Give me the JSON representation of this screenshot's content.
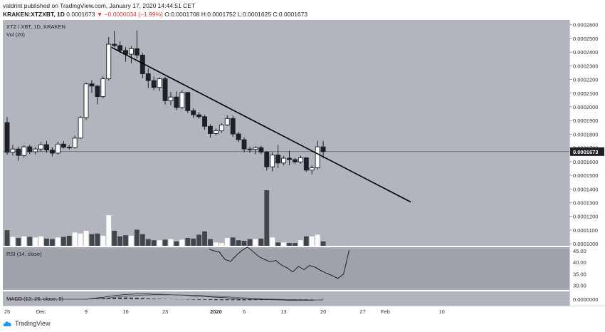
{
  "header": {
    "line1": "valdrint published on TradingView.com, January 17, 2020 14:44:51 CET",
    "symbol": "KRAKEN:XTZXBT, 1D",
    "last": "0.0001673",
    "change": "−0.0000034 (−1.99%)",
    "ohlc": "O:0.0001708 H:0.0001752 L:0.0001625 C:0.0001673"
  },
  "footer": {
    "brand": "TradingView"
  },
  "colors": {
    "panel_bg": "#b2b5be",
    "rsi_bg": "#a6a9b1",
    "up": "#ffffff",
    "down": "#1e2026"
  },
  "chart_data": {
    "type": "candlestick",
    "title": "XTZ / XBT, 1D, KRAKEN",
    "volume_label": "Vol (20)",
    "rsi_label": "RSI (14, close)",
    "macd_label": "MACD (12, 26, close, 9)",
    "last_price_label": "0.0001673",
    "price_axis": {
      "ylim": [
        9.85e-05,
        0.0002635
      ],
      "ticks": [
        0.0001,
        0.00011,
        0.00012,
        0.00013,
        0.00014,
        0.00015,
        0.00016,
        0.00017,
        0.00018,
        0.00019,
        0.0002,
        0.00021,
        0.00022,
        0.00023,
        0.00024,
        0.00025,
        0.00026
      ],
      "tick_labels": [
        "0.0001000",
        "0.0001100",
        "0.0001200",
        "0.0001300",
        "0.0001400",
        "0.0001500",
        "0.0001600",
        "0.0001700",
        "0.0001800",
        "0.0001900",
        "0.0002000",
        "0.0002100",
        "0.0002200",
        "0.0002300",
        "0.0002400",
        "0.0002500",
        "0.0002600"
      ]
    },
    "rsi_axis": {
      "ylim": [
        28,
        46.5
      ],
      "ticks": [
        30,
        35,
        40,
        45
      ],
      "tick_labels": [
        "30.00",
        "35.00",
        "40.00",
        "45.00"
      ]
    },
    "macd_axis": {
      "tick_labels": [
        "0.0000000"
      ]
    },
    "x_axis": {
      "labels": [
        {
          "day": 0,
          "label": "25"
        },
        {
          "day": 6,
          "label": "Dec"
        },
        {
          "day": 14,
          "label": "9"
        },
        {
          "day": 21,
          "label": "16"
        },
        {
          "day": 28,
          "label": "23"
        },
        {
          "day": 37,
          "label": "2020"
        },
        {
          "day": 42,
          "label": "6"
        },
        {
          "day": 49,
          "label": "13"
        },
        {
          "day": 56,
          "label": "20"
        },
        {
          "day": 63,
          "label": "27"
        },
        {
          "day": 67,
          "label": "Feb"
        },
        {
          "day": 77,
          "label": "10"
        }
      ]
    },
    "candles": [
      {
        "o": 0.0001885,
        "h": 0.0001925,
        "l": 0.000165,
        "c": 0.0001668
      },
      {
        "o": 0.0001668,
        "h": 0.0001722,
        "l": 0.0001645,
        "c": 0.0001692
      },
      {
        "o": 0.0001692,
        "h": 0.000171,
        "l": 0.0001605,
        "c": 0.0001645
      },
      {
        "o": 0.0001645,
        "h": 0.000172,
        "l": 0.000163,
        "c": 0.0001708
      },
      {
        "o": 0.0001708,
        "h": 0.0001722,
        "l": 0.0001655,
        "c": 0.0001672
      },
      {
        "o": 0.0001672,
        "h": 0.0001705,
        "l": 0.0001652,
        "c": 0.0001692
      },
      {
        "o": 0.0001692,
        "h": 0.0001742,
        "l": 0.0001672,
        "c": 0.0001724
      },
      {
        "o": 0.0001724,
        "h": 0.0001752,
        "l": 0.0001665,
        "c": 0.0001685
      },
      {
        "o": 0.0001685,
        "h": 0.0001705,
        "l": 0.0001638,
        "c": 0.0001662
      },
      {
        "o": 0.0001662,
        "h": 0.0001745,
        "l": 0.0001652,
        "c": 0.0001728
      },
      {
        "o": 0.0001728,
        "h": 0.000175,
        "l": 0.0001695,
        "c": 0.0001705
      },
      {
        "o": 0.0001705,
        "h": 0.0001722,
        "l": 0.0001688,
        "c": 0.0001702
      },
      {
        "o": 0.0001702,
        "h": 0.000179,
        "l": 0.0001695,
        "c": 0.0001772
      },
      {
        "o": 0.0001772,
        "h": 0.0001932,
        "l": 0.0001765,
        "c": 0.0001922
      },
      {
        "o": 0.0001922,
        "h": 0.0002178,
        "l": 0.0001905,
        "c": 0.0002168
      },
      {
        "o": 0.0002168,
        "h": 0.0002195,
        "l": 0.0002102,
        "c": 0.0002152
      },
      {
        "o": 0.0002152,
        "h": 0.0002158,
        "l": 0.0002018,
        "c": 0.0002075
      },
      {
        "o": 0.0002075,
        "h": 0.0002222,
        "l": 0.0002062,
        "c": 0.0002205
      },
      {
        "o": 0.0002205,
        "h": 0.000251,
        "l": 0.0002192,
        "c": 0.0002458
      },
      {
        "o": 0.0002458,
        "h": 0.0002555,
        "l": 0.0002435,
        "c": 0.0002448
      },
      {
        "o": 0.0002448,
        "h": 0.0002478,
        "l": 0.0002395,
        "c": 0.0002412
      },
      {
        "o": 0.0002412,
        "h": 0.0002438,
        "l": 0.000233,
        "c": 0.0002385
      },
      {
        "o": 0.0002385,
        "h": 0.0002442,
        "l": 0.0002318,
        "c": 0.0002425
      },
      {
        "o": 0.0002425,
        "h": 0.0002558,
        "l": 0.0002352,
        "c": 0.0002378
      },
      {
        "o": 0.0002378,
        "h": 0.0002395,
        "l": 0.000221,
        "c": 0.0002242
      },
      {
        "o": 0.0002242,
        "h": 0.0002282,
        "l": 0.0002138,
        "c": 0.0002192
      },
      {
        "o": 0.0002192,
        "h": 0.0002222,
        "l": 0.0002122,
        "c": 0.0002142
      },
      {
        "o": 0.0002142,
        "h": 0.0002215,
        "l": 0.0002115,
        "c": 0.0002205
      },
      {
        "o": 0.0002205,
        "h": 0.000222,
        "l": 0.0002018,
        "c": 0.0002045
      },
      {
        "o": 0.0002045,
        "h": 0.0002108,
        "l": 0.0002012,
        "c": 0.0002072
      },
      {
        "o": 0.0002072,
        "h": 0.0002112,
        "l": 0.0001975,
        "c": 0.0001995
      },
      {
        "o": 0.0001995,
        "h": 0.0002122,
        "l": 0.0001985,
        "c": 0.0002105
      },
      {
        "o": 0.0002105,
        "h": 0.000211,
        "l": 0.0001955,
        "c": 0.0001972
      },
      {
        "o": 0.0001972,
        "h": 0.000199,
        "l": 0.0001918,
        "c": 0.0001942
      },
      {
        "o": 0.0001942,
        "h": 0.0001962,
        "l": 0.0001912,
        "c": 0.0001928
      },
      {
        "o": 0.0001928,
        "h": 0.0001942,
        "l": 0.0001832,
        "c": 0.0001858
      },
      {
        "o": 0.0001858,
        "h": 0.0001872,
        "l": 0.0001775,
        "c": 0.0001805
      },
      {
        "o": 0.0001805,
        "h": 0.0001842,
        "l": 0.0001792,
        "c": 0.0001825
      },
      {
        "o": 0.0001825,
        "h": 0.000188,
        "l": 0.000181,
        "c": 0.0001868
      },
      {
        "o": 0.0001868,
        "h": 0.0001938,
        "l": 0.000186,
        "c": 0.0001915
      },
      {
        "o": 0.0001915,
        "h": 0.0001935,
        "l": 0.0001782,
        "c": 0.0001802
      },
      {
        "o": 0.0001802,
        "h": 0.0001818,
        "l": 0.0001742,
        "c": 0.000176
      },
      {
        "o": 0.000176,
        "h": 0.0001778,
        "l": 0.0001668,
        "c": 0.0001692
      },
      {
        "o": 0.0001692,
        "h": 0.0001708,
        "l": 0.0001665,
        "c": 0.000169
      },
      {
        "o": 0.000169,
        "h": 0.0001712,
        "l": 0.0001655,
        "c": 0.0001702
      },
      {
        "o": 0.0001702,
        "h": 0.0001715,
        "l": 0.0001655,
        "c": 0.000167
      },
      {
        "o": 0.000167,
        "h": 0.0001678,
        "l": 0.0001535,
        "c": 0.0001562
      },
      {
        "o": 0.0001562,
        "h": 0.0001668,
        "l": 0.0001528,
        "c": 0.0001648
      },
      {
        "o": 0.0001648,
        "h": 0.0001722,
        "l": 0.0001552,
        "c": 0.000159
      },
      {
        "o": 0.000159,
        "h": 0.0001642,
        "l": 0.0001572,
        "c": 0.0001625
      },
      {
        "o": 0.0001625,
        "h": 0.000168,
        "l": 0.0001575,
        "c": 0.0001615
      },
      {
        "o": 0.0001615,
        "h": 0.0001628,
        "l": 0.0001582,
        "c": 0.0001598
      },
      {
        "o": 0.0001598,
        "h": 0.0001645,
        "l": 0.0001585,
        "c": 0.0001628
      },
      {
        "o": 0.0001628,
        "h": 0.0001632,
        "l": 0.0001525,
        "c": 0.0001538
      },
      {
        "o": 0.0001538,
        "h": 0.0001572,
        "l": 0.0001508,
        "c": 0.0001555
      },
      {
        "o": 0.0001555,
        "h": 0.0001752,
        "l": 0.0001542,
        "c": 0.0001708
      },
      {
        "o": 0.0001708,
        "h": 0.0001752,
        "l": 0.0001625,
        "c": 0.0001673
      }
    ],
    "volume": [
      0.28,
      0.16,
      0.14,
      0.17,
      0.16,
      0.15,
      0.17,
      0.13,
      0.12,
      0.15,
      0.16,
      0.18,
      0.24,
      0.22,
      0.27,
      0.21,
      0.22,
      0.18,
      0.55,
      0.27,
      0.17,
      0.19,
      0.18,
      0.29,
      0.21,
      0.12,
      0.1,
      0.1,
      0.11,
      0.12,
      0.08,
      0.11,
      0.14,
      0.13,
      0.2,
      0.26,
      0.12,
      0.06,
      0.05,
      0.14,
      0.15,
      0.1,
      0.09,
      0.12,
      0.12,
      0.13,
      1.0,
      0.15,
      0.06,
      0.06,
      0.05,
      0.05,
      0.1,
      0.17,
      0.17,
      0.2,
      0.08
    ],
    "rsi": [
      null,
      null,
      null,
      null,
      null,
      null,
      null,
      null,
      null,
      null,
      null,
      null,
      null,
      null,
      null,
      null,
      null,
      null,
      null,
      null,
      null,
      null,
      null,
      null,
      null,
      null,
      null,
      null,
      null,
      null,
      null,
      null,
      null,
      null,
      null,
      null,
      null,
      null,
      null,
      null,
      null,
      null,
      null,
      null,
      null,
      null,
      null,
      null,
      null,
      null,
      null,
      null,
      null,
      null,
      null,
      null,
      null
    ],
    "rsi_line": [
      {
        "day": 35.8,
        "v": 45.6
      },
      {
        "day": 36.6,
        "v": 45.0
      },
      {
        "day": 37.6,
        "v": 44.4
      },
      {
        "day": 38.6,
        "v": 41.2
      },
      {
        "day": 39.6,
        "v": 40.4
      },
      {
        "day": 40.6,
        "v": 43.0
      },
      {
        "day": 41.6,
        "v": 45.1
      },
      {
        "day": 42.6,
        "v": 46.6
      },
      {
        "day": 43.6,
        "v": 44.6
      },
      {
        "day": 44.6,
        "v": 42.4
      },
      {
        "day": 45.6,
        "v": 41.2
      },
      {
        "day": 46.6,
        "v": 40.2
      },
      {
        "day": 47.6,
        "v": 40.8
      },
      {
        "day": 48.6,
        "v": 38.8
      },
      {
        "day": 49.6,
        "v": 37.6
      },
      {
        "day": 50.6,
        "v": 35.8
      },
      {
        "day": 51.6,
        "v": 38.2
      },
      {
        "day": 52.6,
        "v": 36.8
      },
      {
        "day": 53.6,
        "v": 38.6
      },
      {
        "day": 54.6,
        "v": 37.8
      },
      {
        "day": 55.6,
        "v": 36.4
      },
      {
        "day": 56.6,
        "v": 35.2
      },
      {
        "day": 57.6,
        "v": 34.2
      },
      {
        "day": 58.6,
        "v": 33.0
      },
      {
        "day": 59.6,
        "v": 34.8
      },
      {
        "day": 60.6,
        "v": 45.2
      }
    ],
    "macd": [
      0,
      0,
      0,
      0,
      0,
      0,
      0,
      0,
      0,
      0,
      0,
      0,
      0,
      0,
      0,
      5e-07,
      9e-07,
      1.2e-06,
      1.8e-06,
      2.3e-06,
      2.7e-06,
      3e-06,
      3.2e-06,
      3.4e-06,
      3.4e-06,
      3.3e-06,
      3.2e-06,
      3.1e-06,
      3e-06,
      2.9e-06,
      2.7e-06,
      2.6e-06,
      2.4e-06,
      2.2e-06,
      2e-06,
      1.8e-06,
      1.5e-06,
      1.3e-06,
      1.1e-06,
      9e-07,
      7e-07,
      4e-07,
      2e-07,
      1e-07,
      0,
      -1e-07,
      -2e-07,
      -3e-07,
      -4e-07,
      -5e-07,
      -6e-07,
      -6e-07,
      -6e-07,
      -7e-07,
      -7e-07,
      -5e-07,
      -4e-07
    ],
    "signal": [
      0,
      0,
      0,
      0,
      0,
      0,
      0,
      0,
      0,
      0,
      0,
      0,
      0,
      0,
      0,
      2e-07,
      4e-07,
      6e-07,
      9e-07,
      1.3e-06,
      1.6e-06,
      1.9e-06,
      2.2e-06,
      2.4e-06,
      2.6e-06,
      2.7e-06,
      2.8e-06,
      2.8e-06,
      2.8e-06,
      2.8e-06,
      2.8e-06,
      2.7e-06,
      2.6e-06,
      2.5e-06,
      2.4e-06,
      2.2e-06,
      2e-06,
      1.9e-06,
      1.7e-06,
      1.5e-06,
      1.3e-06,
      1.1e-06,
      9e-07,
      7e-07,
      5e-07,
      4e-07,
      2e-07,
      1e-07,
      0,
      -1e-07,
      -2e-07,
      -3e-07,
      -3e-07,
      -4e-07,
      -5e-07,
      -5e-07,
      -5e-07
    ],
    "trendline": [
      {
        "day": 18.5,
        "price": 0.0002435
      },
      {
        "day": 71.5,
        "price": 0.0001305
      }
    ]
  }
}
